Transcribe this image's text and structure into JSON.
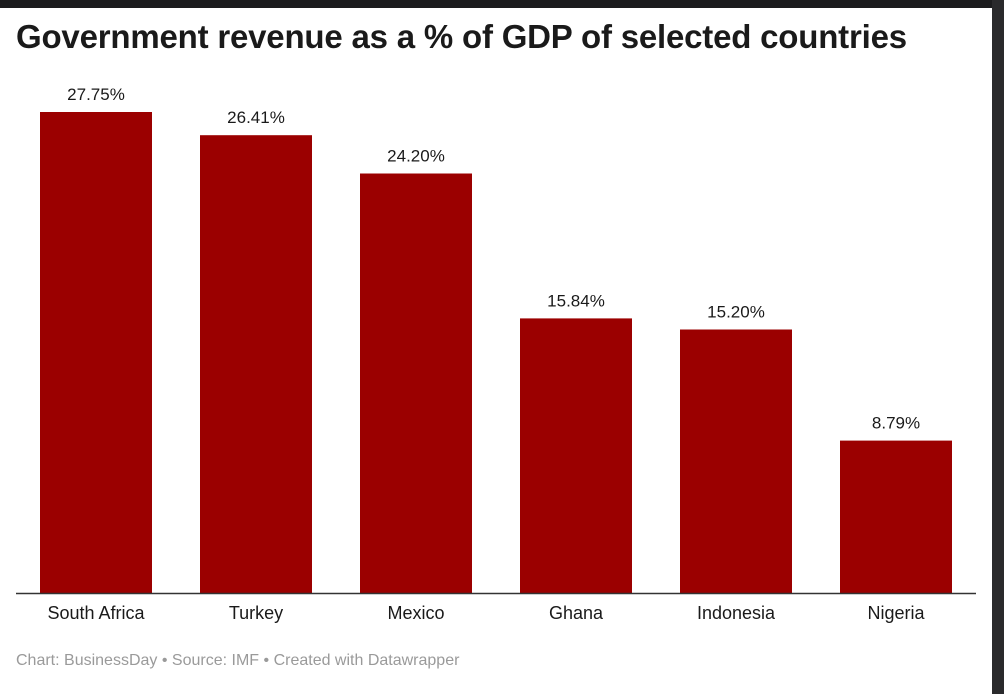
{
  "colors": {
    "bar": "#9b0000",
    "axis": "#333333",
    "text": "#1a1a1a",
    "footer": "#9a9a9a"
  },
  "footer": {
    "chart_label": "Chart: BusinessDay",
    "sep1": "•",
    "source_label": "Source: IMF",
    "sep2": "•",
    "created_label": "Created with Datawrapper"
  },
  "chart_data": {
    "type": "bar",
    "title": "Government revenue as a % of GDP of selected countries",
    "categories": [
      "South Africa",
      "Turkey",
      "Mexico",
      "Ghana",
      "Indonesia",
      "Nigeria"
    ],
    "values": [
      27.75,
      26.41,
      24.2,
      15.84,
      15.2,
      8.79
    ],
    "data_labels": [
      "27.75%",
      "26.41%",
      "24.20%",
      "15.84%",
      "15.20%",
      "8.79%"
    ],
    "ylim": [
      0,
      27.75
    ],
    "grid": false,
    "legend": "none"
  }
}
